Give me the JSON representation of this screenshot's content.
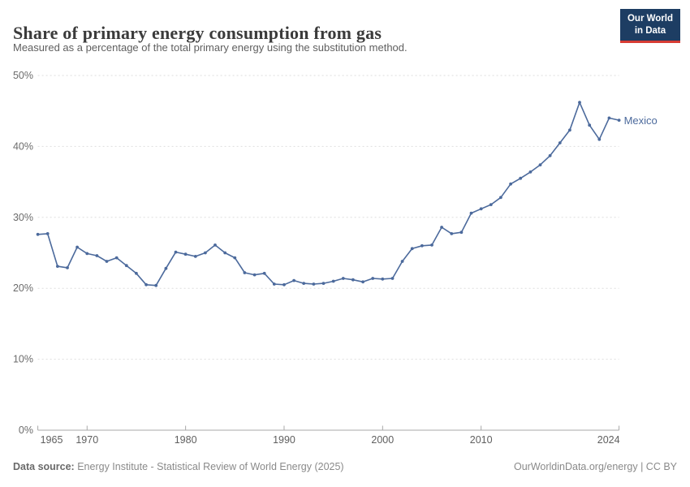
{
  "header": {
    "title": "Share of primary energy consumption from gas",
    "subtitle": "Measured as a percentage of the total primary energy using the substitution method.",
    "logo_line1": "Our World",
    "logo_line2": "in Data",
    "logo_bg_color": "#1d3d63",
    "logo_accent_color": "#d73c34"
  },
  "chart_data": {
    "type": "line",
    "title": "Share of primary energy consumption from gas",
    "grid": true,
    "legend_position": "end-of-line-label",
    "x_range": [
      1965,
      2024
    ],
    "x_step": 1,
    "ylim": [
      0,
      50
    ],
    "y_axis": {
      "ticks": [
        {
          "value": 0,
          "label": "0%"
        },
        {
          "value": 10,
          "label": "10%"
        },
        {
          "value": 20,
          "label": "20%"
        },
        {
          "value": 30,
          "label": "30%"
        },
        {
          "value": 40,
          "label": "40%"
        },
        {
          "value": 50,
          "label": "50%"
        }
      ]
    },
    "x_axis": {
      "ticks": [
        {
          "value": 1965,
          "label": "1965"
        },
        {
          "value": 1970,
          "label": "1970"
        },
        {
          "value": 1980,
          "label": "1980"
        },
        {
          "value": 1990,
          "label": "1990"
        },
        {
          "value": 2000,
          "label": "2000"
        },
        {
          "value": 2010,
          "label": "2010"
        },
        {
          "value": 2024,
          "label": "2024"
        }
      ]
    },
    "series": [
      {
        "name": "Mexico",
        "color": "#4c6a9c",
        "values": [
          27.6,
          27.7,
          23.1,
          22.9,
          25.8,
          24.9,
          24.6,
          23.8,
          24.3,
          23.2,
          22.1,
          20.5,
          20.4,
          22.8,
          25.1,
          24.8,
          24.5,
          25.0,
          26.1,
          25.0,
          24.3,
          22.2,
          21.9,
          22.1,
          20.6,
          20.5,
          21.1,
          20.7,
          20.6,
          20.7,
          21.0,
          21.4,
          21.2,
          20.9,
          21.4,
          21.3,
          21.4,
          23.8,
          25.6,
          26.0,
          26.1,
          28.6,
          27.7,
          27.9,
          30.6,
          31.2,
          31.8,
          32.8,
          34.7,
          35.5,
          36.4,
          37.4,
          38.7,
          40.5,
          42.3,
          46.2,
          43.0,
          41.0,
          44.0,
          43.7
        ]
      }
    ]
  },
  "footer": {
    "source_label": "Data source:",
    "source_text": " Energy Institute - Statistical Review of World Energy (2025)",
    "credit": "OurWorldinData.org/energy | CC BY"
  }
}
